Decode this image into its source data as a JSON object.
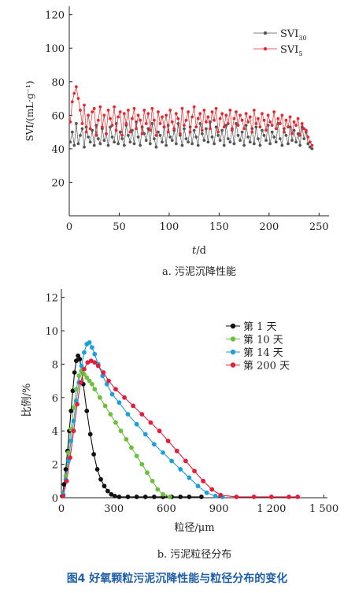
{
  "figure_caption": "图4 好氧颗粒污泥沉降性能与粒径分布的变化",
  "chart_data": [
    {
      "id": "a",
      "type": "line",
      "caption": "a. 污泥沉降性能",
      "xlabel": "t/d",
      "ylabel": "SVI/(mL·g⁻¹)",
      "xlim": [
        0,
        260
      ],
      "ylim": [
        0,
        125
      ],
      "xticks": [
        0,
        50,
        100,
        150,
        200,
        250
      ],
      "yticks": [
        20,
        40,
        60,
        80,
        100,
        120
      ],
      "xtick_labels": [
        "0",
        "50",
        "100",
        "150",
        "200",
        "250"
      ],
      "ytick_labels": [
        "20",
        "40",
        "60",
        "80",
        "100",
        "120"
      ],
      "legend_position": "top-right",
      "series": [
        {
          "name": "SVI",
          "name_sub": "30",
          "color": "#555555",
          "x": [
            1,
            3,
            5,
            7,
            9,
            11,
            13,
            15,
            17,
            19,
            21,
            23,
            25,
            27,
            29,
            31,
            33,
            35,
            37,
            39,
            41,
            43,
            45,
            47,
            49,
            51,
            53,
            55,
            57,
            59,
            61,
            63,
            65,
            67,
            69,
            71,
            73,
            75,
            77,
            79,
            81,
            83,
            85,
            87,
            89,
            91,
            93,
            95,
            97,
            99,
            101,
            103,
            105,
            107,
            109,
            111,
            113,
            115,
            117,
            119,
            121,
            123,
            125,
            127,
            129,
            131,
            133,
            135,
            137,
            139,
            141,
            143,
            145,
            147,
            149,
            151,
            153,
            155,
            157,
            159,
            161,
            163,
            165,
            167,
            169,
            171,
            173,
            175,
            177,
            179,
            181,
            183,
            185,
            187,
            189,
            191,
            193,
            195,
            197,
            199,
            201,
            203,
            205,
            207,
            209,
            211,
            213,
            215,
            217,
            219,
            221,
            223,
            225,
            227,
            229,
            231,
            233,
            235,
            237,
            239,
            241,
            243
          ],
          "y": [
            44,
            50,
            42,
            55,
            43,
            48,
            52,
            41,
            53,
            47,
            44,
            51,
            42,
            54,
            46,
            43,
            52,
            45,
            49,
            42,
            53,
            47,
            44,
            55,
            43,
            50,
            46,
            42,
            54,
            48,
            44,
            51,
            43,
            56,
            47,
            42,
            53,
            49,
            45,
            52,
            43,
            55,
            46,
            41,
            50,
            48,
            44,
            53,
            42,
            54,
            47,
            45,
            51,
            43,
            55,
            48,
            42,
            52,
            46,
            44,
            53,
            43,
            51,
            47,
            42,
            55,
            49,
            45,
            52,
            44,
            56,
            47,
            43,
            53,
            48,
            45,
            51,
            42,
            54,
            46,
            44,
            52,
            43,
            55,
            48,
            45,
            50,
            42,
            54,
            47,
            44,
            52,
            43,
            53,
            46,
            42,
            51,
            48,
            45,
            54,
            43,
            50,
            47,
            44,
            55,
            46,
            42,
            52,
            48,
            43,
            53,
            45,
            51,
            44,
            49,
            42,
            53,
            46,
            50,
            43,
            41,
            40
          ]
        },
        {
          "name": "SVI",
          "name_sub": "5",
          "color": "#e8282d",
          "x": [
            1,
            3,
            5,
            7,
            9,
            11,
            13,
            15,
            17,
            19,
            21,
            23,
            25,
            27,
            29,
            31,
            33,
            35,
            37,
            39,
            41,
            43,
            45,
            47,
            49,
            51,
            53,
            55,
            57,
            59,
            61,
            63,
            65,
            67,
            69,
            71,
            73,
            75,
            77,
            79,
            81,
            83,
            85,
            87,
            89,
            91,
            93,
            95,
            97,
            99,
            101,
            103,
            105,
            107,
            109,
            111,
            113,
            115,
            117,
            119,
            121,
            123,
            125,
            127,
            129,
            131,
            133,
            135,
            137,
            139,
            141,
            143,
            145,
            147,
            149,
            151,
            153,
            155,
            157,
            159,
            161,
            163,
            165,
            167,
            169,
            171,
            173,
            175,
            177,
            179,
            181,
            183,
            185,
            187,
            189,
            191,
            193,
            195,
            197,
            199,
            201,
            203,
            205,
            207,
            209,
            211,
            213,
            215,
            217,
            219,
            221,
            223,
            225,
            227,
            229,
            231,
            233,
            235,
            237,
            239,
            241,
            243
          ],
          "y": [
            56,
            68,
            73,
            77,
            70,
            63,
            55,
            66,
            50,
            60,
            52,
            62,
            64,
            48,
            57,
            65,
            53,
            60,
            49,
            63,
            58,
            54,
            65,
            51,
            59,
            62,
            48,
            61,
            55,
            63,
            50,
            58,
            64,
            52,
            60,
            57,
            49,
            63,
            55,
            61,
            51,
            64,
            57,
            48,
            62,
            55,
            59,
            53,
            60,
            50,
            63,
            56,
            52,
            61,
            58,
            49,
            64,
            54,
            57,
            62,
            50,
            59,
            65,
            53,
            58,
            61,
            51,
            63,
            56,
            59,
            52,
            62,
            57,
            64,
            50,
            58,
            61,
            53,
            60,
            55,
            63,
            51,
            58,
            62,
            54,
            60,
            57,
            52,
            61,
            56,
            59,
            50,
            63,
            55,
            58,
            53,
            61,
            57,
            51,
            60,
            56,
            54,
            62,
            52,
            58,
            55,
            60,
            50,
            57,
            53,
            59,
            49,
            56,
            54,
            58,
            48,
            55,
            52,
            51,
            47,
            44,
            42
          ]
        }
      ]
    },
    {
      "id": "b",
      "type": "line",
      "caption": "b. 污泥粒径分布",
      "xlabel": "粒径/μm",
      "ylabel": "比例/%",
      "xlim": [
        0,
        1520
      ],
      "ylim": [
        0,
        12.5
      ],
      "xticks": [
        0,
        300,
        600,
        900,
        1200,
        1500
      ],
      "yticks": [
        0,
        2,
        4,
        6,
        8,
        10,
        12
      ],
      "xtick_labels": [
        "0",
        "300",
        "600",
        "900",
        "1 200",
        "1 500"
      ],
      "ytick_labels": [
        "0",
        "2",
        "4",
        "6",
        "8",
        "10",
        "12"
      ],
      "legend_position": "top-right",
      "series": [
        {
          "name": "第 1 天",
          "color": "#111111",
          "x": [
            5,
            15,
            25,
            35,
            45,
            55,
            65,
            75,
            85,
            95,
            105,
            115,
            125,
            145,
            165,
            185,
            205,
            225,
            245,
            265,
            285,
            305,
            330,
            380,
            430,
            480,
            530,
            580,
            630,
            680,
            730,
            800
          ],
          "y": [
            0.1,
            0.8,
            1.7,
            2.8,
            4.0,
            5.2,
            6.4,
            7.5,
            8.2,
            8.5,
            8.3,
            7.6,
            6.8,
            5.2,
            3.8,
            2.6,
            1.7,
            1.1,
            0.7,
            0.4,
            0.2,
            0.1,
            0.05,
            0.05,
            0.05,
            0.05,
            0.05,
            0.05,
            0.05,
            0.05,
            0.05,
            0.05
          ]
        },
        {
          "name": "第 10 天",
          "color": "#6dbf3e",
          "x": [
            10,
            25,
            40,
            55,
            70,
            85,
            100,
            115,
            130,
            145,
            160,
            175,
            190,
            220,
            250,
            280,
            310,
            340,
            370,
            400,
            430,
            460,
            490,
            520,
            550,
            580,
            620
          ],
          "y": [
            0.2,
            1.3,
            2.7,
            4.1,
            5.4,
            6.5,
            7.3,
            7.6,
            7.4,
            7.2,
            7.0,
            6.8,
            6.5,
            6.0,
            5.5,
            5.0,
            4.5,
            4.0,
            3.5,
            3.0,
            2.5,
            2.0,
            1.5,
            1.0,
            0.5,
            0.2,
            0.05
          ]
        },
        {
          "name": "第 14 天",
          "color": "#1e9fd8",
          "x": [
            10,
            25,
            40,
            55,
            70,
            85,
            100,
            115,
            130,
            145,
            160,
            175,
            190,
            210,
            235,
            260,
            290,
            330,
            380,
            430,
            480,
            530,
            580,
            630,
            680,
            730,
            780,
            830,
            880,
            920
          ],
          "y": [
            0.2,
            1.1,
            2.2,
            3.4,
            4.6,
            5.8,
            6.9,
            7.9,
            8.7,
            9.2,
            9.3,
            9.0,
            8.6,
            8.0,
            7.3,
            6.8,
            6.2,
            5.7,
            5.0,
            4.4,
            3.8,
            3.2,
            2.7,
            2.2,
            1.7,
            1.2,
            0.7,
            0.3,
            0.1,
            0.05
          ]
        },
        {
          "name": "第 200 天",
          "color": "#e31e3c",
          "x": [
            10,
            30,
            50,
            70,
            90,
            110,
            130,
            150,
            170,
            190,
            210,
            240,
            270,
            310,
            360,
            410,
            460,
            510,
            560,
            610,
            660,
            710,
            760,
            810,
            860,
            910,
            1000,
            1100,
            1200,
            1300,
            1350
          ],
          "y": [
            0.1,
            1.0,
            2.4,
            4.0,
            5.6,
            6.9,
            7.7,
            8.1,
            8.2,
            8.1,
            7.9,
            7.5,
            7.0,
            6.5,
            6.0,
            5.5,
            5.0,
            4.5,
            4.0,
            3.4,
            2.8,
            2.2,
            1.6,
            1.0,
            0.5,
            0.15,
            0.05,
            0.05,
            0.05,
            0.05,
            0.05
          ]
        }
      ]
    }
  ]
}
